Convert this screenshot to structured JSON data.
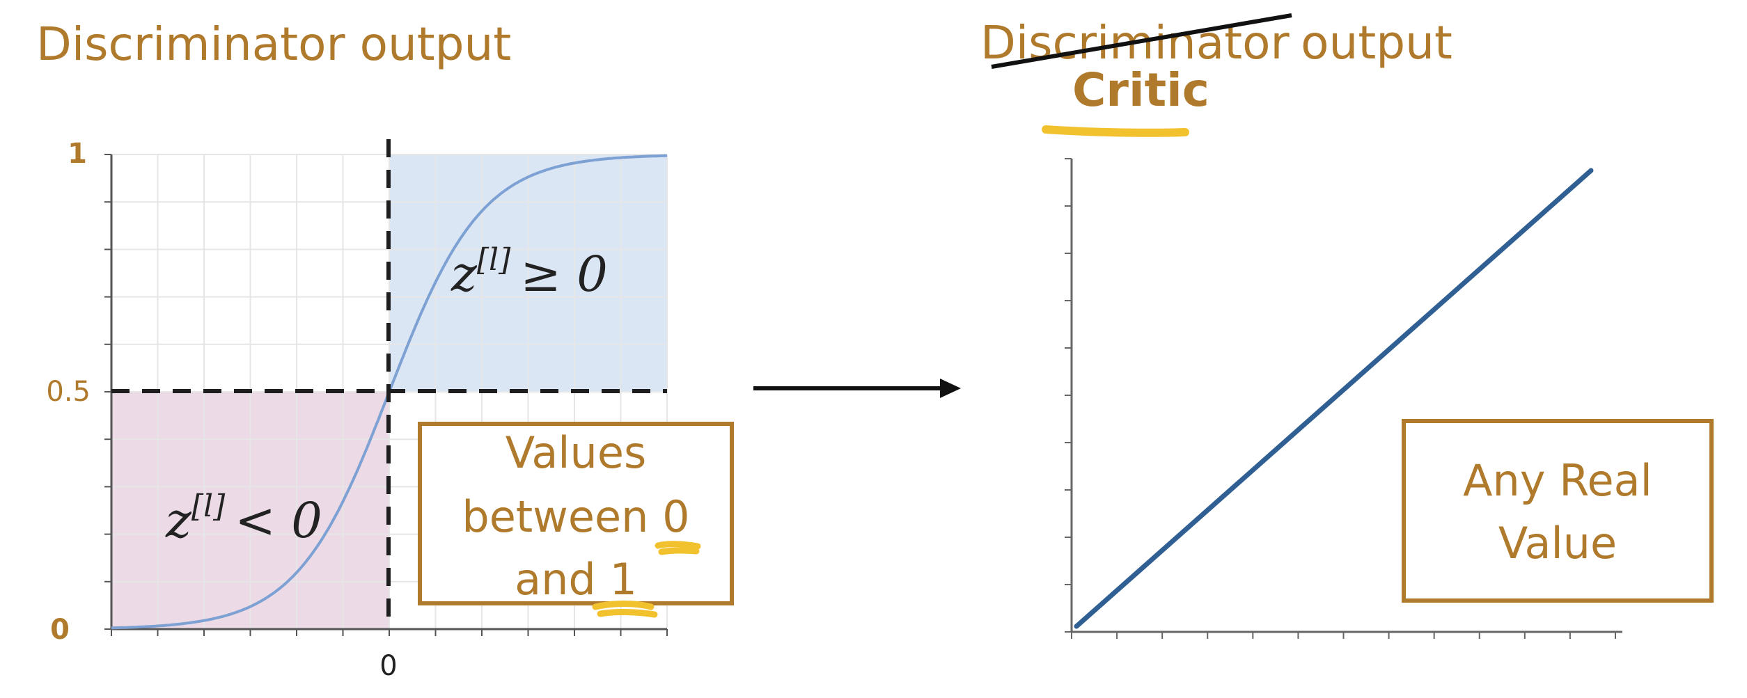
{
  "left_panel": {
    "title": "Discriminator output",
    "y_ticks": [
      "1",
      "0.5",
      "0"
    ],
    "x_tick": "0",
    "region_upper": {
      "var": "z",
      "superscript": "[l]",
      "relation": "≥ 0"
    },
    "region_lower": {
      "var": "z",
      "superscript": "[l]",
      "relation": "< 0"
    },
    "note_lines": [
      "Values",
      "between 0",
      "and 1"
    ]
  },
  "right_panel": {
    "title_struck": "Discriminator",
    "title_rest": "output",
    "replacement_title": "Critic",
    "note_lines": [
      "Any Real",
      "Value"
    ]
  },
  "colors": {
    "accent": "#b07a2c",
    "highlight": "#f2c12e",
    "upper_region": "#dbe6f5",
    "lower_region": "#ecdbe6",
    "sigmoid_curve": "#7ea1d3",
    "linear_line": "#2f5f93",
    "grid": "#e6e6e6"
  },
  "chart_data": [
    {
      "type": "line",
      "name": "sigmoid",
      "x": [
        -6,
        -5,
        -4,
        -3,
        -2,
        -1,
        0,
        1,
        2,
        3,
        4,
        5,
        6
      ],
      "y": [
        0.002,
        0.007,
        0.018,
        0.047,
        0.119,
        0.269,
        0.5,
        0.731,
        0.881,
        0.953,
        0.982,
        0.993,
        0.998
      ],
      "y_ticks": [
        0,
        0.5,
        1
      ],
      "ylim": [
        0,
        1
      ],
      "xlim": [
        -6,
        6
      ],
      "grid": true,
      "thresholds": {
        "x": 0,
        "y": 0.5
      }
    },
    {
      "type": "line",
      "name": "linear",
      "x": [
        0,
        1
      ],
      "y": [
        0,
        1
      ],
      "grid": false
    }
  ]
}
